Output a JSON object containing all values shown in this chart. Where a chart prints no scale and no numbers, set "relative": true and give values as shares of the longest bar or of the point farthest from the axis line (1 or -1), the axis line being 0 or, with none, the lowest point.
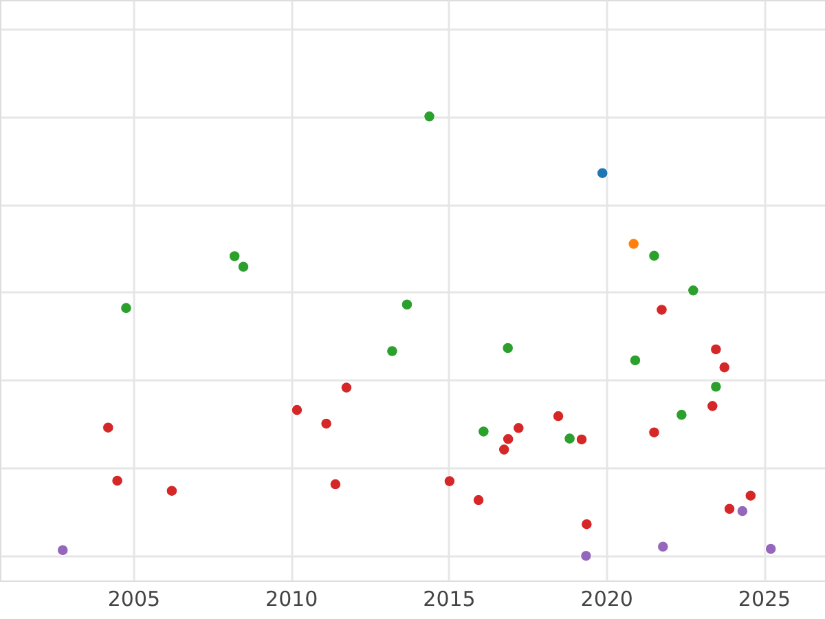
{
  "chart_data": {
    "type": "scatter",
    "relative": true,
    "marker": "circle",
    "grid": true,
    "tick_labels": "x",
    "xlim": [
      2000.77,
      2026.94
    ],
    "xticks": [
      2005,
      2010,
      2015,
      2020,
      2025
    ],
    "series": [
      {
        "color": "#2ca02c",
        "x": [
          2004.77,
          2008.21,
          2008.49,
          2013.68,
          2013.21,
          2014.39,
          2021.52,
          2022.76,
          2016.88,
          2020.92,
          2023.48,
          2022.39,
          2016.11,
          2018.84
        ],
        "values": [
          0.564,
          0.682,
          0.658,
          0.572,
          0.466,
          1.0,
          0.683,
          0.604,
          0.473,
          0.445,
          0.385,
          0.321,
          0.283,
          0.267
        ]
      },
      {
        "color": "#d62728",
        "x": [
          2004.2,
          2004.49,
          2006.22,
          2010.19,
          2011.12,
          2011.76,
          2011.41,
          2021.76,
          2023.48,
          2023.75,
          2023.37,
          2018.48,
          2017.22,
          2016.89,
          2016.76,
          2019.22,
          2021.52,
          2015.03,
          2015.95,
          2019.38,
          2024.58,
          2023.91
        ],
        "values": [
          0.292,
          0.171,
          0.148,
          0.332,
          0.301,
          0.383,
          0.163,
          0.56,
          0.47,
          0.429,
          0.341,
          0.318,
          0.291,
          0.266,
          0.242,
          0.265,
          0.281,
          0.17,
          0.127,
          0.072,
          0.137,
          0.107
        ]
      },
      {
        "color": "#9467bd",
        "x": [
          2002.76,
          2024.32,
          2021.8,
          2025.22,
          2019.36
        ],
        "values": [
          0.013,
          0.102,
          0.021,
          0.016,
          0.0
        ]
      },
      {
        "color": "#1f77b4",
        "x": [
          2019.88
        ],
        "values": [
          0.871
        ]
      },
      {
        "color": "#ff7f0e",
        "x": [
          2020.87
        ],
        "values": [
          0.71
        ]
      }
    ]
  }
}
